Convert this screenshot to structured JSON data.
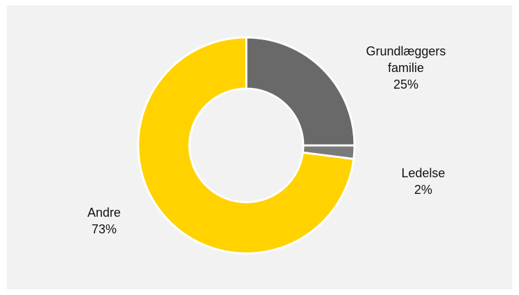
{
  "chart_data": {
    "type": "pie",
    "donut": true,
    "legend": "none",
    "slices": [
      {
        "name_lines": [
          "Grundlæggers",
          "familie"
        ],
        "value": 25,
        "value_label": "25%",
        "color": "#696969"
      },
      {
        "name_lines": [
          "Ledelse"
        ],
        "value": 2,
        "value_label": "2%",
        "color": "#7a7a7a"
      },
      {
        "name_lines": [
          "Andre"
        ],
        "value": 73,
        "value_label": "73%",
        "color": "#ffd200"
      }
    ]
  },
  "colors": {
    "background": "#f2f2f2",
    "separator": "#ffffff"
  }
}
